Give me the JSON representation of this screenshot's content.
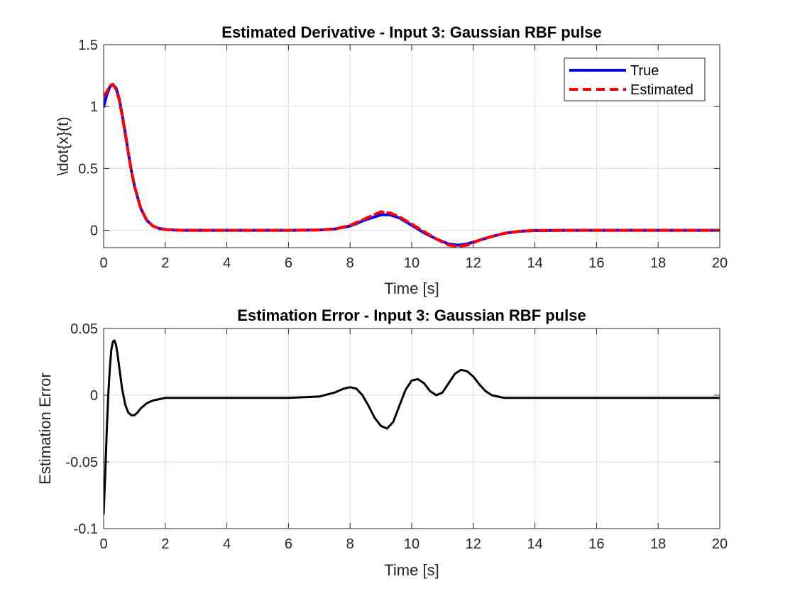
{
  "chart_data": [
    {
      "type": "line",
      "title": "Estimated Derivative - Input 3: Gaussian RBF pulse",
      "xlabel": "Time [s]",
      "ylabel": "\\dot{x}(t)",
      "xlim": [
        0,
        20
      ],
      "ylim": [
        -0.14,
        1.5
      ],
      "xticks": [
        0,
        2,
        4,
        6,
        8,
        10,
        12,
        14,
        16,
        18,
        20
      ],
      "yticks": [
        0,
        0.5,
        1,
        1.5
      ],
      "xtick_labels": [
        "0",
        "2",
        "4",
        "6",
        "8",
        "10",
        "12",
        "14",
        "16",
        "18",
        "20"
      ],
      "ytick_labels": [
        "0",
        "0.5",
        "1",
        "1.5"
      ],
      "grid": true,
      "legend": "top-right",
      "series": [
        {
          "name": "True",
          "color": "#0000ff",
          "style": "solid",
          "x": [
            0,
            0.1,
            0.2,
            0.3,
            0.4,
            0.5,
            0.6,
            0.7,
            0.8,
            0.9,
            1.0,
            1.2,
            1.4,
            1.6,
            1.8,
            2.0,
            2.3,
            2.6,
            3,
            4,
            5,
            6,
            7,
            7.5,
            8,
            8.5,
            9,
            9.3,
            9.6,
            10,
            10.4,
            10.8,
            11.2,
            11.5,
            11.8,
            12.2,
            12.6,
            13,
            13.5,
            14,
            15,
            16,
            17,
            18,
            19,
            20
          ],
          "y": [
            1.0,
            1.09,
            1.16,
            1.18,
            1.15,
            1.07,
            0.94,
            0.79,
            0.63,
            0.48,
            0.36,
            0.18,
            0.08,
            0.035,
            0.015,
            0.007,
            0.002,
            0,
            0,
            0,
            0,
            0,
            0.003,
            0.01,
            0.035,
            0.085,
            0.125,
            0.125,
            0.1,
            0.04,
            -0.02,
            -0.07,
            -0.11,
            -0.12,
            -0.11,
            -0.08,
            -0.05,
            -0.025,
            -0.008,
            -0.002,
            0,
            0,
            0,
            0,
            0,
            0
          ]
        },
        {
          "name": "Estimated",
          "color": "#ff0000",
          "style": "dashed",
          "x": [
            0,
            0.1,
            0.2,
            0.3,
            0.4,
            0.5,
            0.6,
            0.7,
            0.8,
            0.9,
            1.0,
            1.2,
            1.4,
            1.6,
            1.8,
            2.0,
            2.3,
            2.6,
            3,
            4,
            5,
            6,
            7,
            7.5,
            8,
            8.5,
            9,
            9.3,
            9.6,
            10,
            10.4,
            10.8,
            11.2,
            11.5,
            11.8,
            12.2,
            12.6,
            13,
            13.5,
            14,
            15,
            16,
            17,
            18,
            19,
            20
          ],
          "y": [
            1.08,
            1.12,
            1.17,
            1.18,
            1.14,
            1.06,
            0.93,
            0.78,
            0.63,
            0.48,
            0.36,
            0.18,
            0.08,
            0.035,
            0.015,
            0.006,
            0.002,
            0,
            0,
            0,
            0,
            0,
            0.003,
            0.01,
            0.04,
            0.095,
            0.15,
            0.14,
            0.11,
            0.05,
            -0.01,
            -0.07,
            -0.12,
            -0.13,
            -0.12,
            -0.08,
            -0.05,
            -0.025,
            -0.008,
            -0.002,
            0,
            0,
            0,
            0,
            0,
            0
          ]
        }
      ]
    },
    {
      "type": "line",
      "title": "Estimation Error - Input 3: Gaussian RBF pulse",
      "xlabel": "Time [s]",
      "ylabel": "Estimation Error",
      "xlim": [
        0,
        20
      ],
      "ylim": [
        -0.1,
        0.05
      ],
      "xticks": [
        0,
        2,
        4,
        6,
        8,
        10,
        12,
        14,
        16,
        18,
        20
      ],
      "yticks": [
        -0.1,
        -0.05,
        0,
        0.05
      ],
      "xtick_labels": [
        "0",
        "2",
        "4",
        "6",
        "8",
        "10",
        "12",
        "14",
        "16",
        "18",
        "20"
      ],
      "ytick_labels": [
        "-0.1",
        "-0.05",
        "0",
        "0.05"
      ],
      "grid": true,
      "series": [
        {
          "name": "Estimation Error",
          "color": "#000000",
          "style": "solid",
          "x": [
            0,
            0.05,
            0.1,
            0.15,
            0.2,
            0.25,
            0.3,
            0.35,
            0.4,
            0.45,
            0.5,
            0.6,
            0.7,
            0.8,
            0.9,
            1.0,
            1.1,
            1.2,
            1.4,
            1.6,
            1.8,
            2.0,
            2.5,
            3,
            4,
            5,
            6,
            7,
            7.5,
            7.8,
            8.0,
            8.2,
            8.4,
            8.6,
            8.8,
            9.0,
            9.2,
            9.4,
            9.6,
            9.8,
            10.0,
            10.2,
            10.4,
            10.6,
            10.8,
            11.0,
            11.2,
            11.4,
            11.6,
            11.8,
            12.0,
            12.2,
            12.4,
            12.6,
            12.8,
            13.0,
            13.4,
            14,
            15,
            16,
            17,
            18,
            19,
            20
          ],
          "y": [
            -0.089,
            -0.06,
            -0.028,
            0.0,
            0.02,
            0.034,
            0.04,
            0.041,
            0.038,
            0.031,
            0.022,
            0.005,
            -0.007,
            -0.013,
            -0.015,
            -0.015,
            -0.013,
            -0.01,
            -0.006,
            -0.004,
            -0.003,
            -0.002,
            -0.002,
            -0.002,
            -0.002,
            -0.002,
            -0.002,
            -0.001,
            0.002,
            0.005,
            0.006,
            0.005,
            0.0,
            -0.008,
            -0.017,
            -0.023,
            -0.025,
            -0.02,
            -0.008,
            0.004,
            0.011,
            0.012,
            0.009,
            0.003,
            0.0,
            0.002,
            0.009,
            0.016,
            0.019,
            0.018,
            0.014,
            0.008,
            0.003,
            0.0,
            -0.001,
            -0.002,
            -0.002,
            -0.002,
            -0.002,
            -0.002,
            -0.002,
            -0.002,
            -0.002,
            -0.002
          ]
        }
      ]
    }
  ]
}
